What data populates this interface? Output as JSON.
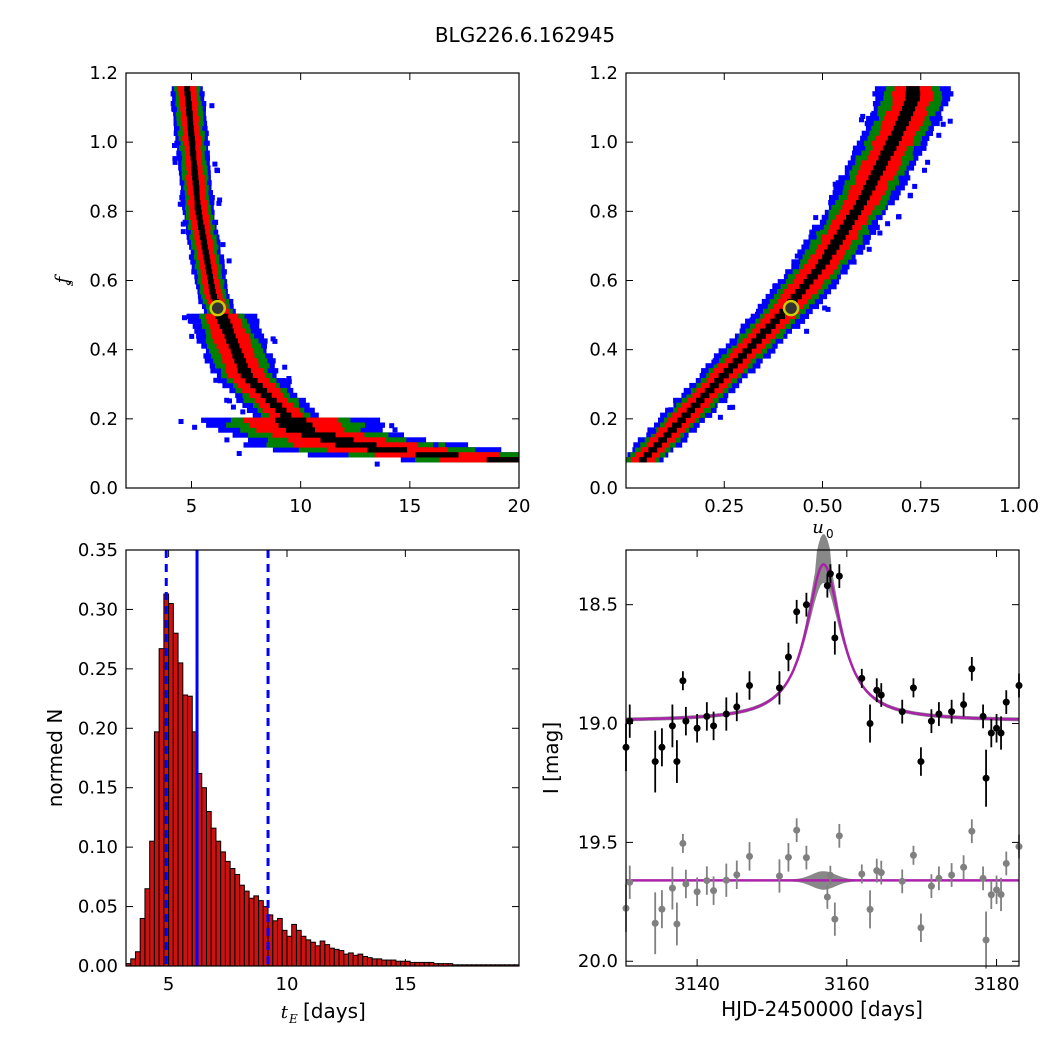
{
  "figure": {
    "title": "BLG226.6.162945"
  },
  "colors": {
    "sigma1": "#000000",
    "sigma2": "#ff0000",
    "sigma3": "#008000",
    "sigma4": "#0000ff",
    "best_fill": "#333333",
    "best_edge": "#cccc00",
    "hist": "#cc1111",
    "vline": "#0000ff",
    "model": "#aa22aa",
    "band": "#888888",
    "resid": "#808080"
  },
  "chart_data": [
    {
      "id": "tE_fs",
      "type": "heatmap",
      "xlabel": "",
      "ylabel": "f_s",
      "xlim": [
        2,
        20
      ],
      "ylim": [
        0,
        1.2
      ],
      "xticks": [
        "5",
        "10",
        "15",
        "20"
      ],
      "yticks": [
        "0.0",
        "0.2",
        "0.4",
        "0.6",
        "0.8",
        "1.0",
        "1.2"
      ],
      "best_fit": {
        "x": 6.2,
        "y": 0.52
      },
      "ridge": [
        [
          4.8,
          1.15
        ],
        [
          5.3,
          0.8
        ],
        [
          6.0,
          0.55
        ],
        [
          7.5,
          0.32
        ],
        [
          10,
          0.16
        ],
        [
          13,
          0.11
        ],
        [
          16,
          0.09
        ],
        [
          19.5,
          0.08
        ]
      ]
    },
    {
      "id": "u0_fs",
      "type": "heatmap",
      "xlabel": "u_0",
      "ylabel": "",
      "xlim": [
        0,
        1.0
      ],
      "ylim": [
        0,
        1.2
      ],
      "xticks": [
        "0.25",
        "0.50",
        "0.75",
        "1.00"
      ],
      "yticks": [
        "0.0",
        "0.2",
        "0.4",
        "0.6",
        "0.8",
        "1.0",
        "1.2"
      ],
      "best_fit": {
        "x": 0.42,
        "y": 0.52
      },
      "ridge": [
        [
          0.03,
          0.06
        ],
        [
          0.1,
          0.14
        ],
        [
          0.2,
          0.26
        ],
        [
          0.3,
          0.38
        ],
        [
          0.4,
          0.5
        ],
        [
          0.5,
          0.64
        ],
        [
          0.6,
          0.82
        ],
        [
          0.7,
          1.04
        ],
        [
          0.73,
          1.12
        ]
      ]
    },
    {
      "id": "tE_hist",
      "type": "bar",
      "xlabel": "t_E [days]",
      "ylabel": "normed N",
      "xlim": [
        3.2,
        19.8
      ],
      "ylim": [
        0,
        0.35
      ],
      "xticks": [
        "5",
        "10",
        "15"
      ],
      "yticks": [
        "0.00",
        "0.05",
        "0.10",
        "0.15",
        "0.20",
        "0.25",
        "0.30",
        "0.35"
      ],
      "bin_start": 3.2,
      "bin_width": 0.2,
      "values": [
        0.002,
        0.006,
        0.012,
        0.04,
        0.065,
        0.105,
        0.197,
        0.267,
        0.313,
        0.305,
        0.28,
        0.255,
        0.228,
        0.227,
        0.197,
        0.162,
        0.15,
        0.13,
        0.116,
        0.105,
        0.096,
        0.088,
        0.082,
        0.077,
        0.068,
        0.063,
        0.057,
        0.059,
        0.055,
        0.05,
        0.043,
        0.038,
        0.04,
        0.03,
        0.025,
        0.035,
        0.03,
        0.025,
        0.022,
        0.02,
        0.017,
        0.021,
        0.018,
        0.015,
        0.014,
        0.013,
        0.01,
        0.011,
        0.009,
        0.01,
        0.008,
        0.007,
        0.006,
        0.006,
        0.005,
        0.005,
        0.005,
        0.004,
        0.004,
        0.004,
        0.003,
        0.003,
        0.003,
        0.003,
        0.003,
        0.002,
        0.002,
        0.002,
        0.002,
        0.001,
        0.001,
        0.001,
        0.001,
        0.001,
        0.001,
        0.001,
        0.001,
        0.001,
        0.001,
        0.001,
        0.001,
        0.001,
        0.001
      ],
      "median": 6.2,
      "lower": 4.9,
      "upper": 9.2
    },
    {
      "id": "lightcurve",
      "type": "scatter",
      "xlabel": "HJD-2450000 [days]",
      "ylabel": "I [mag]",
      "xlim": [
        3130.5,
        3183
      ],
      "ylim": [
        20.02,
        18.27
      ],
      "y_inverted": true,
      "xticks": [
        "3140",
        "3160",
        "3180"
      ],
      "yticks": [
        "18.5",
        "19.0",
        "19.5",
        "20.0"
      ],
      "model": {
        "t0": 3156.9,
        "baseline": 18.99,
        "peak": 18.33,
        "tau": 2.8
      },
      "residual_offset": 19.66,
      "points": [
        [
          3130.4,
          19.1,
          0.1
        ],
        [
          3131.0,
          18.99,
          0.07
        ],
        [
          3134.4,
          19.16,
          0.13
        ],
        [
          3135.3,
          19.1,
          0.08
        ],
        [
          3136.7,
          19.01,
          0.09
        ],
        [
          3137.3,
          19.16,
          0.09
        ],
        [
          3138.1,
          18.82,
          0.04
        ],
        [
          3138.5,
          18.99,
          0.06
        ],
        [
          3140.0,
          19.02,
          0.06
        ],
        [
          3141.3,
          18.97,
          0.06
        ],
        [
          3142.2,
          19.01,
          0.06
        ],
        [
          3143.9,
          18.96,
          0.07
        ],
        [
          3145.3,
          18.93,
          0.06
        ],
        [
          3147.0,
          18.84,
          0.06
        ],
        [
          3151.0,
          18.85,
          0.07
        ],
        [
          3152.2,
          18.72,
          0.06
        ],
        [
          3153.3,
          18.53,
          0.05
        ],
        [
          3154.6,
          18.5,
          0.05
        ],
        [
          3157.4,
          18.42,
          0.05
        ],
        [
          3157.8,
          18.37,
          0.04
        ],
        [
          3158.4,
          18.64,
          0.07
        ],
        [
          3159.0,
          18.38,
          0.05
        ],
        [
          3162.0,
          18.81,
          0.04
        ],
        [
          3163.1,
          19.0,
          0.08
        ],
        [
          3164.0,
          18.86,
          0.05
        ],
        [
          3164.6,
          18.88,
          0.05
        ],
        [
          3167.4,
          18.95,
          0.05
        ],
        [
          3168.9,
          18.85,
          0.04
        ],
        [
          3169.9,
          19.16,
          0.06
        ],
        [
          3171.3,
          18.99,
          0.05
        ],
        [
          3172.3,
          18.96,
          0.05
        ],
        [
          3174.0,
          18.95,
          0.05
        ],
        [
          3175.6,
          18.92,
          0.05
        ],
        [
          3176.7,
          18.77,
          0.05
        ],
        [
          3178.2,
          18.97,
          0.05
        ],
        [
          3178.6,
          19.23,
          0.12
        ],
        [
          3179.3,
          19.04,
          0.06
        ],
        [
          3180.0,
          19.02,
          0.06
        ],
        [
          3180.6,
          19.04,
          0.07
        ],
        [
          3181.3,
          18.91,
          0.05
        ],
        [
          3183.0,
          18.84,
          0.05
        ]
      ]
    }
  ]
}
